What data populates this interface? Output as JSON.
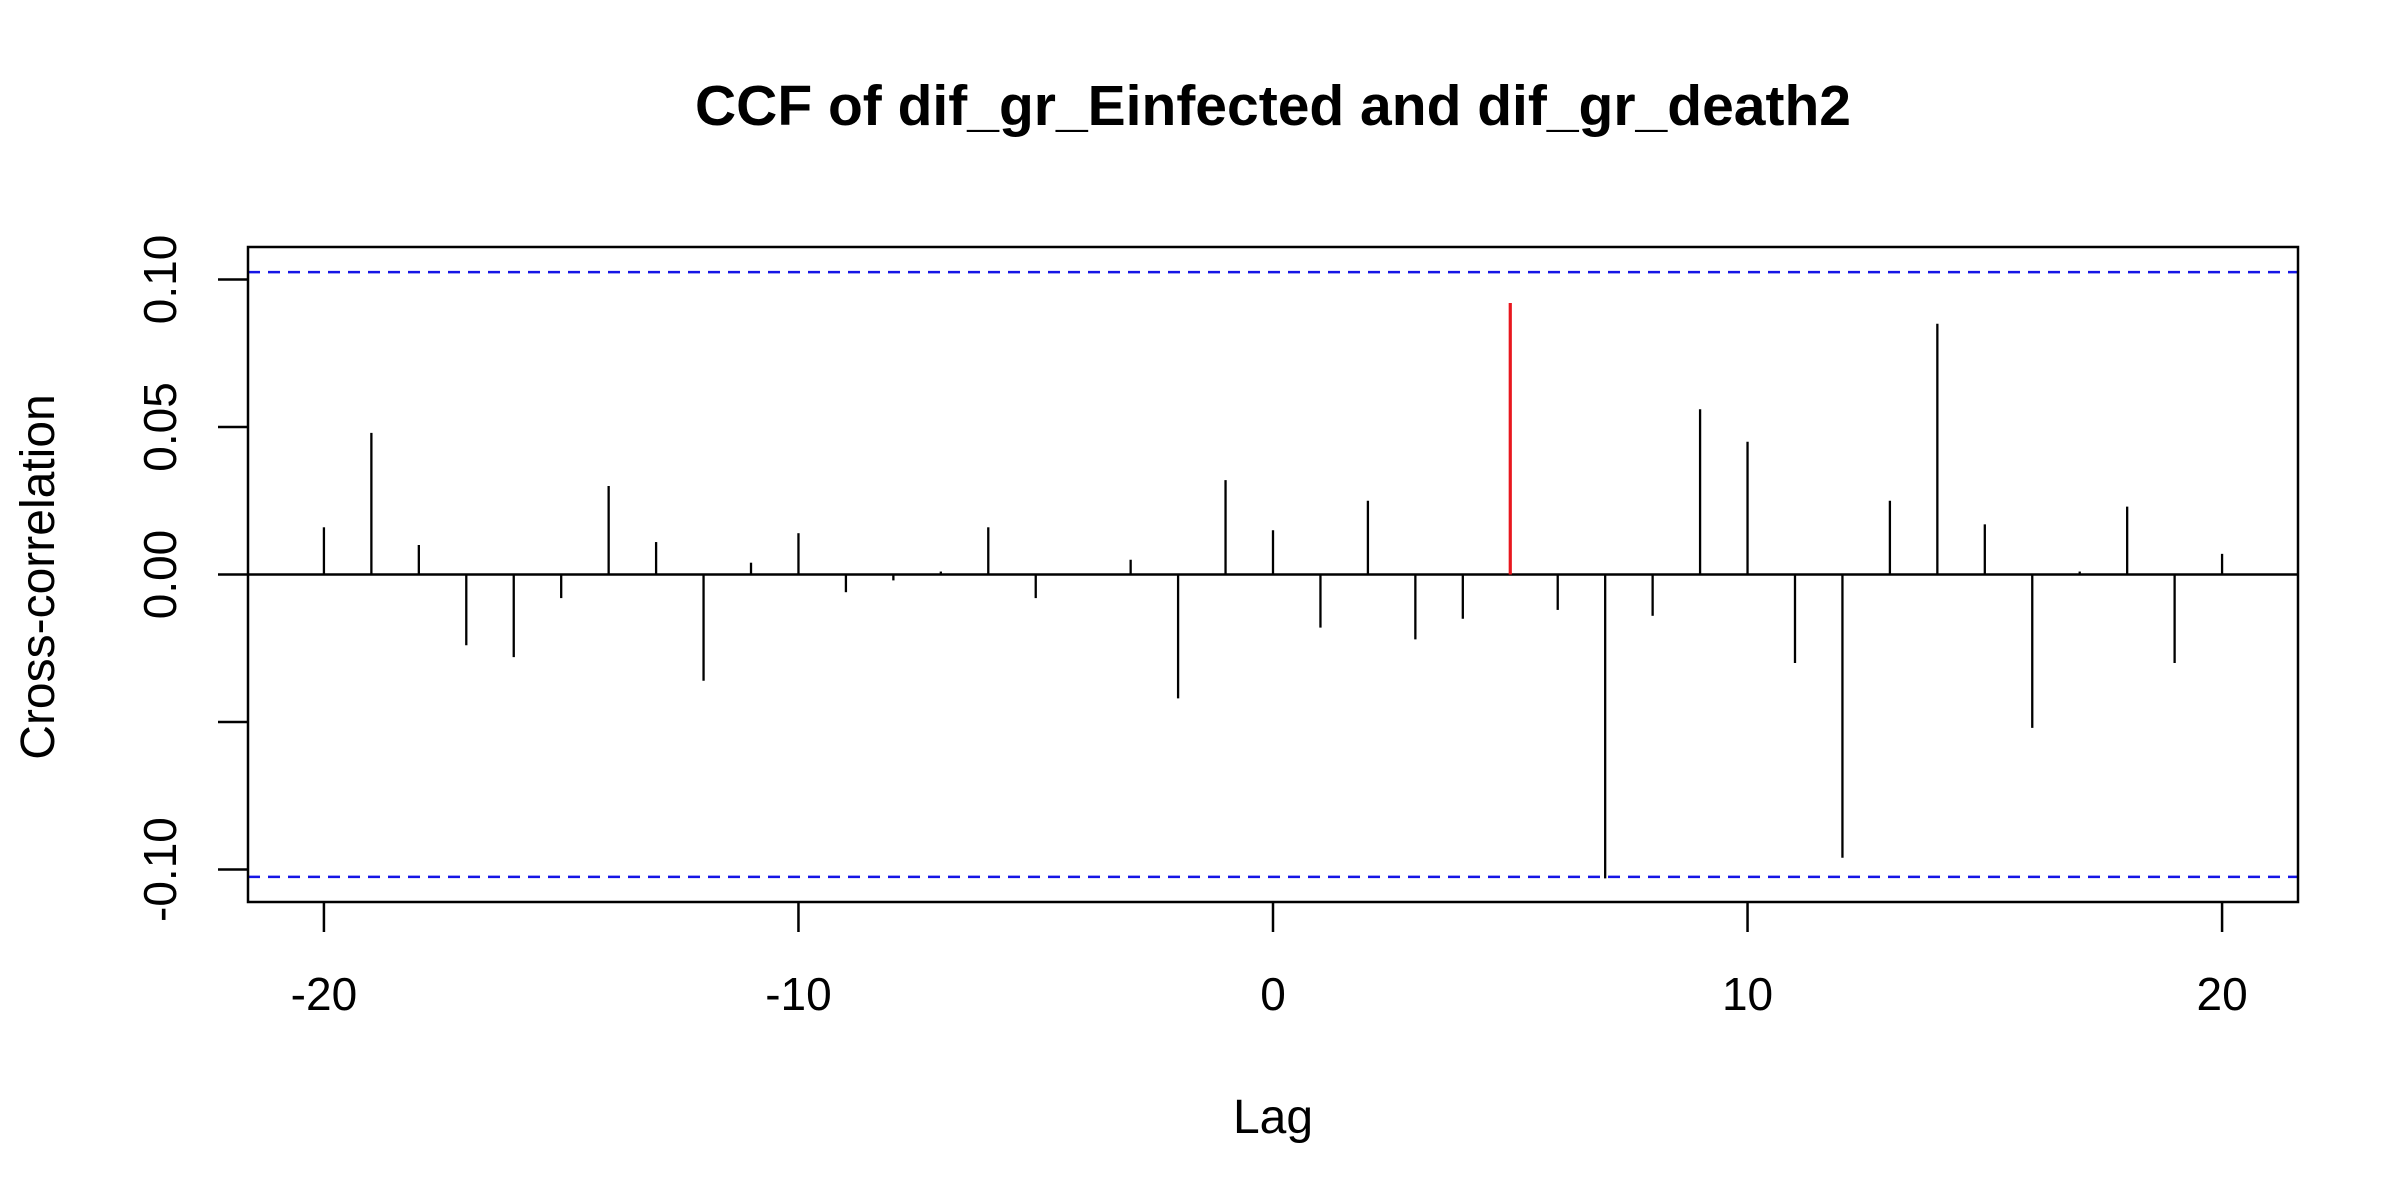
{
  "chart_data": {
    "type": "bar",
    "title": "CCF of dif_gr_Einfected and dif_gr_death2",
    "xlabel": "Lag",
    "ylabel": "Cross-correlation",
    "xlim": [
      -21.6,
      21.6
    ],
    "ylim": [
      -0.111,
      0.111
    ],
    "x_ticks": [
      -20,
      -10,
      0,
      10,
      20
    ],
    "x_tick_labels": [
      "-20",
      "-10",
      "0",
      "10",
      "20"
    ],
    "y_ticks": [
      -0.1,
      -0.05,
      0.0,
      0.05,
      0.1
    ],
    "y_tick_labels": [
      "-0.10",
      "",
      "0.00",
      "0.05",
      "0.10"
    ],
    "confidence_bound": 0.1025,
    "lags": [
      -20,
      -19,
      -18,
      -17,
      -16,
      -15,
      -14,
      -13,
      -12,
      -11,
      -10,
      -9,
      -8,
      -7,
      -6,
      -5,
      -4,
      -3,
      -2,
      -1,
      0,
      1,
      2,
      3,
      4,
      5,
      6,
      7,
      8,
      9,
      10,
      11,
      12,
      13,
      14,
      15,
      16,
      17,
      18,
      19,
      20
    ],
    "values": [
      0.016,
      0.048,
      0.01,
      -0.024,
      -0.028,
      -0.008,
      0.03,
      0.011,
      -0.036,
      0.004,
      0.014,
      -0.006,
      -0.002,
      0.001,
      0.016,
      -0.008,
      0.0,
      0.005,
      -0.042,
      0.032,
      0.015,
      -0.018,
      0.025,
      -0.022,
      -0.015,
      0.092,
      -0.012,
      -0.103,
      -0.014,
      0.056,
      0.045,
      -0.03,
      -0.096,
      0.025,
      0.085,
      0.017,
      -0.052,
      0.001,
      0.023,
      -0.03,
      0.007
    ],
    "highlight_lag": 5,
    "grid": false,
    "colors": {
      "bars": "#000000",
      "highlight": "#e8171e",
      "bounds": "#1515e6",
      "frame": "#000000"
    }
  }
}
